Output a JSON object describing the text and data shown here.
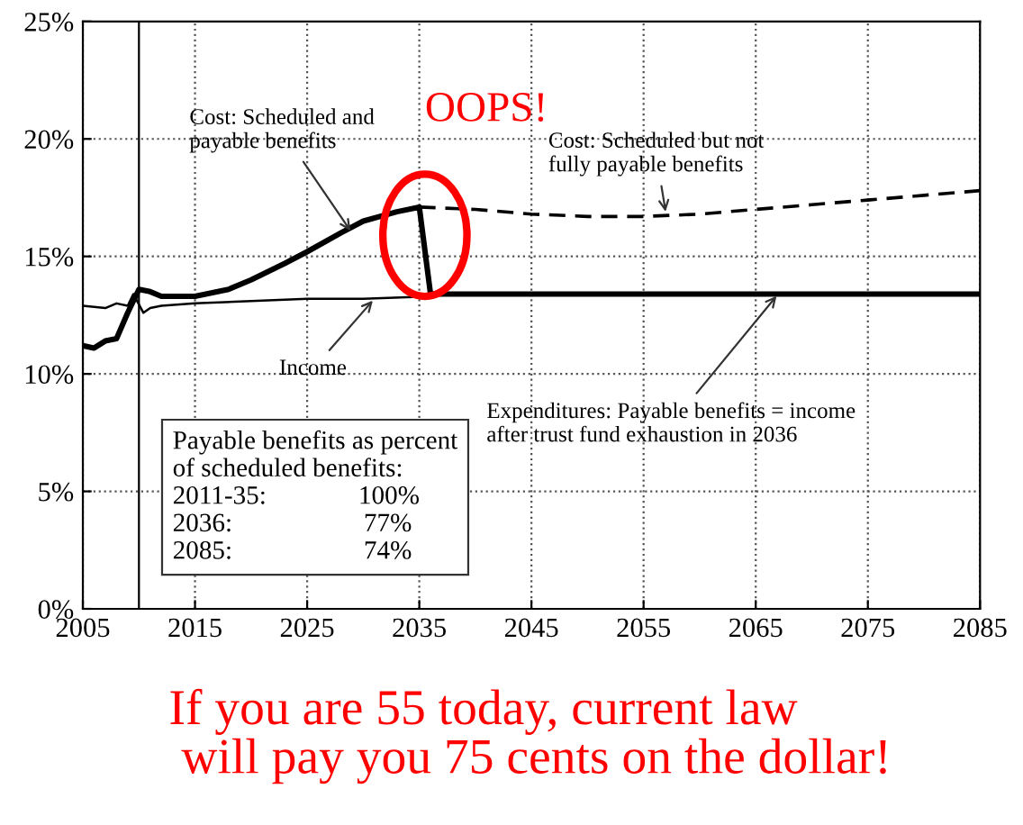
{
  "chart_data": {
    "type": "line",
    "series": [
      {
        "color": "#000000",
        "line_style": "solid",
        "x": [
          2005,
          2006,
          2007,
          2008,
          2009,
          2010,
          2011,
          2012,
          2015,
          2018,
          2020,
          2023,
          2025,
          2028,
          2030,
          2033,
          2035,
          2036,
          2045,
          2055,
          2065,
          2075,
          2085
        ],
        "values": [
          11.2,
          11.1,
          11.4,
          11.5,
          12.6,
          13.6,
          13.5,
          13.3,
          13.3,
          13.6,
          14.0,
          14.7,
          15.2,
          16.0,
          16.5,
          16.9,
          17.1,
          13.4,
          13.4,
          13.4,
          13.4,
          13.4,
          13.4
        ]
      },
      {
        "color": "#000000",
        "line_style": "dashed",
        "x": [
          2035,
          2040,
          2045,
          2050,
          2055,
          2060,
          2065,
          2070,
          2075,
          2080,
          2085
        ],
        "values": [
          17.1,
          17.0,
          16.8,
          16.7,
          16.7,
          16.8,
          17.0,
          17.2,
          17.4,
          17.6,
          17.8
        ]
      },
      {
        "color": "#000000",
        "line_style": "solid",
        "x": [
          2005,
          2007,
          2008,
          2009,
          2009.5,
          2010.4,
          2011,
          2012,
          2015,
          2020,
          2025,
          2030,
          2036
        ],
        "values": [
          12.9,
          12.8,
          13.0,
          12.9,
          13.4,
          12.6,
          12.8,
          12.9,
          13.0,
          13.1,
          13.2,
          13.2,
          13.3
        ]
      }
    ],
    "xlim": [
      2005,
      2085
    ],
    "xticks": [
      2005,
      2015,
      2025,
      2035,
      2045,
      2055,
      2065,
      2075,
      2085
    ],
    "ylim": [
      0,
      25
    ],
    "yticks": [
      {
        "value": 0,
        "label": "0%"
      },
      {
        "value": 5,
        "label": "5%"
      },
      {
        "value": 10,
        "label": "10%"
      },
      {
        "value": 15,
        "label": "15%"
      },
      {
        "value": 20,
        "label": "20%"
      },
      {
        "value": 25,
        "label": "25%"
      }
    ],
    "grid": true,
    "legend": false,
    "marker": "none",
    "ref_lines": [
      {
        "axis": "x",
        "value": 2010,
        "color": "#000000",
        "line_style": "solid"
      }
    ],
    "annotations": [
      {
        "text": "Cost: Scheduled and\npayable benefits",
        "x": 2029,
        "y": 16.0
      },
      {
        "text": "Cost: Scheduled but not\nfully payable benefits",
        "x": 2057,
        "y": 16.8
      },
      {
        "text": "Income",
        "x": 2031,
        "y": 13.2
      },
      {
        "text": "Expenditures: Payable benefits = income\nafter trust fund exhaustion in 2036",
        "x": 2067,
        "y": 13.4
      },
      "Payable benefits as percent\nof scheduled benefits:\n2011-35:              100%\n2036:                    77%\n2085:                    74%",
      "OOPS!",
      "If you are 55 today, current law\n will pay you 75 cents on the dollar!"
    ]
  }
}
